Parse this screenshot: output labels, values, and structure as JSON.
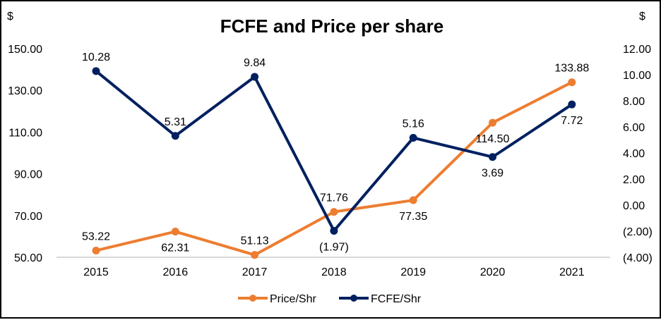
{
  "chart_data": {
    "type": "line",
    "title": "FCFE and Price per share",
    "xlabel": "",
    "ylabel_left": "$",
    "ylabel_right": "$",
    "categories": [
      "2015",
      "2016",
      "2017",
      "2018",
      "2019",
      "2020",
      "2021"
    ],
    "y_left": {
      "min": 50,
      "max": 150,
      "ticks": [
        150,
        130,
        110,
        90,
        70,
        50
      ],
      "tick_labels": [
        "150.00",
        "130.00",
        "110.00",
        "90.00",
        "70.00",
        "50.00"
      ]
    },
    "y_right": {
      "min": -4,
      "max": 12,
      "ticks": [
        12,
        10,
        8,
        6,
        4,
        2,
        0,
        -2,
        -4
      ],
      "tick_labels": [
        "12.00",
        "10.00",
        "8.00",
        "6.00",
        "4.00",
        "2.00",
        "0.00",
        "(2.00)",
        "(4.00)"
      ]
    },
    "series": [
      {
        "name": "Price/Shr",
        "axis": "left",
        "color": "#ED7D31",
        "values": [
          53.22,
          62.31,
          51.13,
          71.76,
          77.35,
          114.5,
          133.88
        ],
        "data_labels": [
          "53.22",
          "62.31",
          "51.13",
          "71.76",
          "77.35",
          "114.50",
          "133.88"
        ],
        "label_positions": [
          "above",
          "below",
          "above",
          "above",
          "below",
          "below",
          "above"
        ]
      },
      {
        "name": "FCFE/Shr",
        "axis": "right",
        "color": "#002060",
        "values": [
          10.28,
          5.31,
          9.84,
          -1.97,
          5.16,
          3.69,
          7.72
        ],
        "data_labels": [
          "10.28",
          "5.31",
          "9.84",
          "(1.97)",
          "5.16",
          "3.69",
          "7.72"
        ],
        "label_positions": [
          "above",
          "above",
          "above",
          "below",
          "above",
          "below",
          "below"
        ]
      }
    ],
    "gridlines": false,
    "baseline_color": "#D9D9D9",
    "legend": {
      "placement": "bottom",
      "items": [
        "Price/Shr",
        "FCFE/Shr"
      ]
    }
  }
}
